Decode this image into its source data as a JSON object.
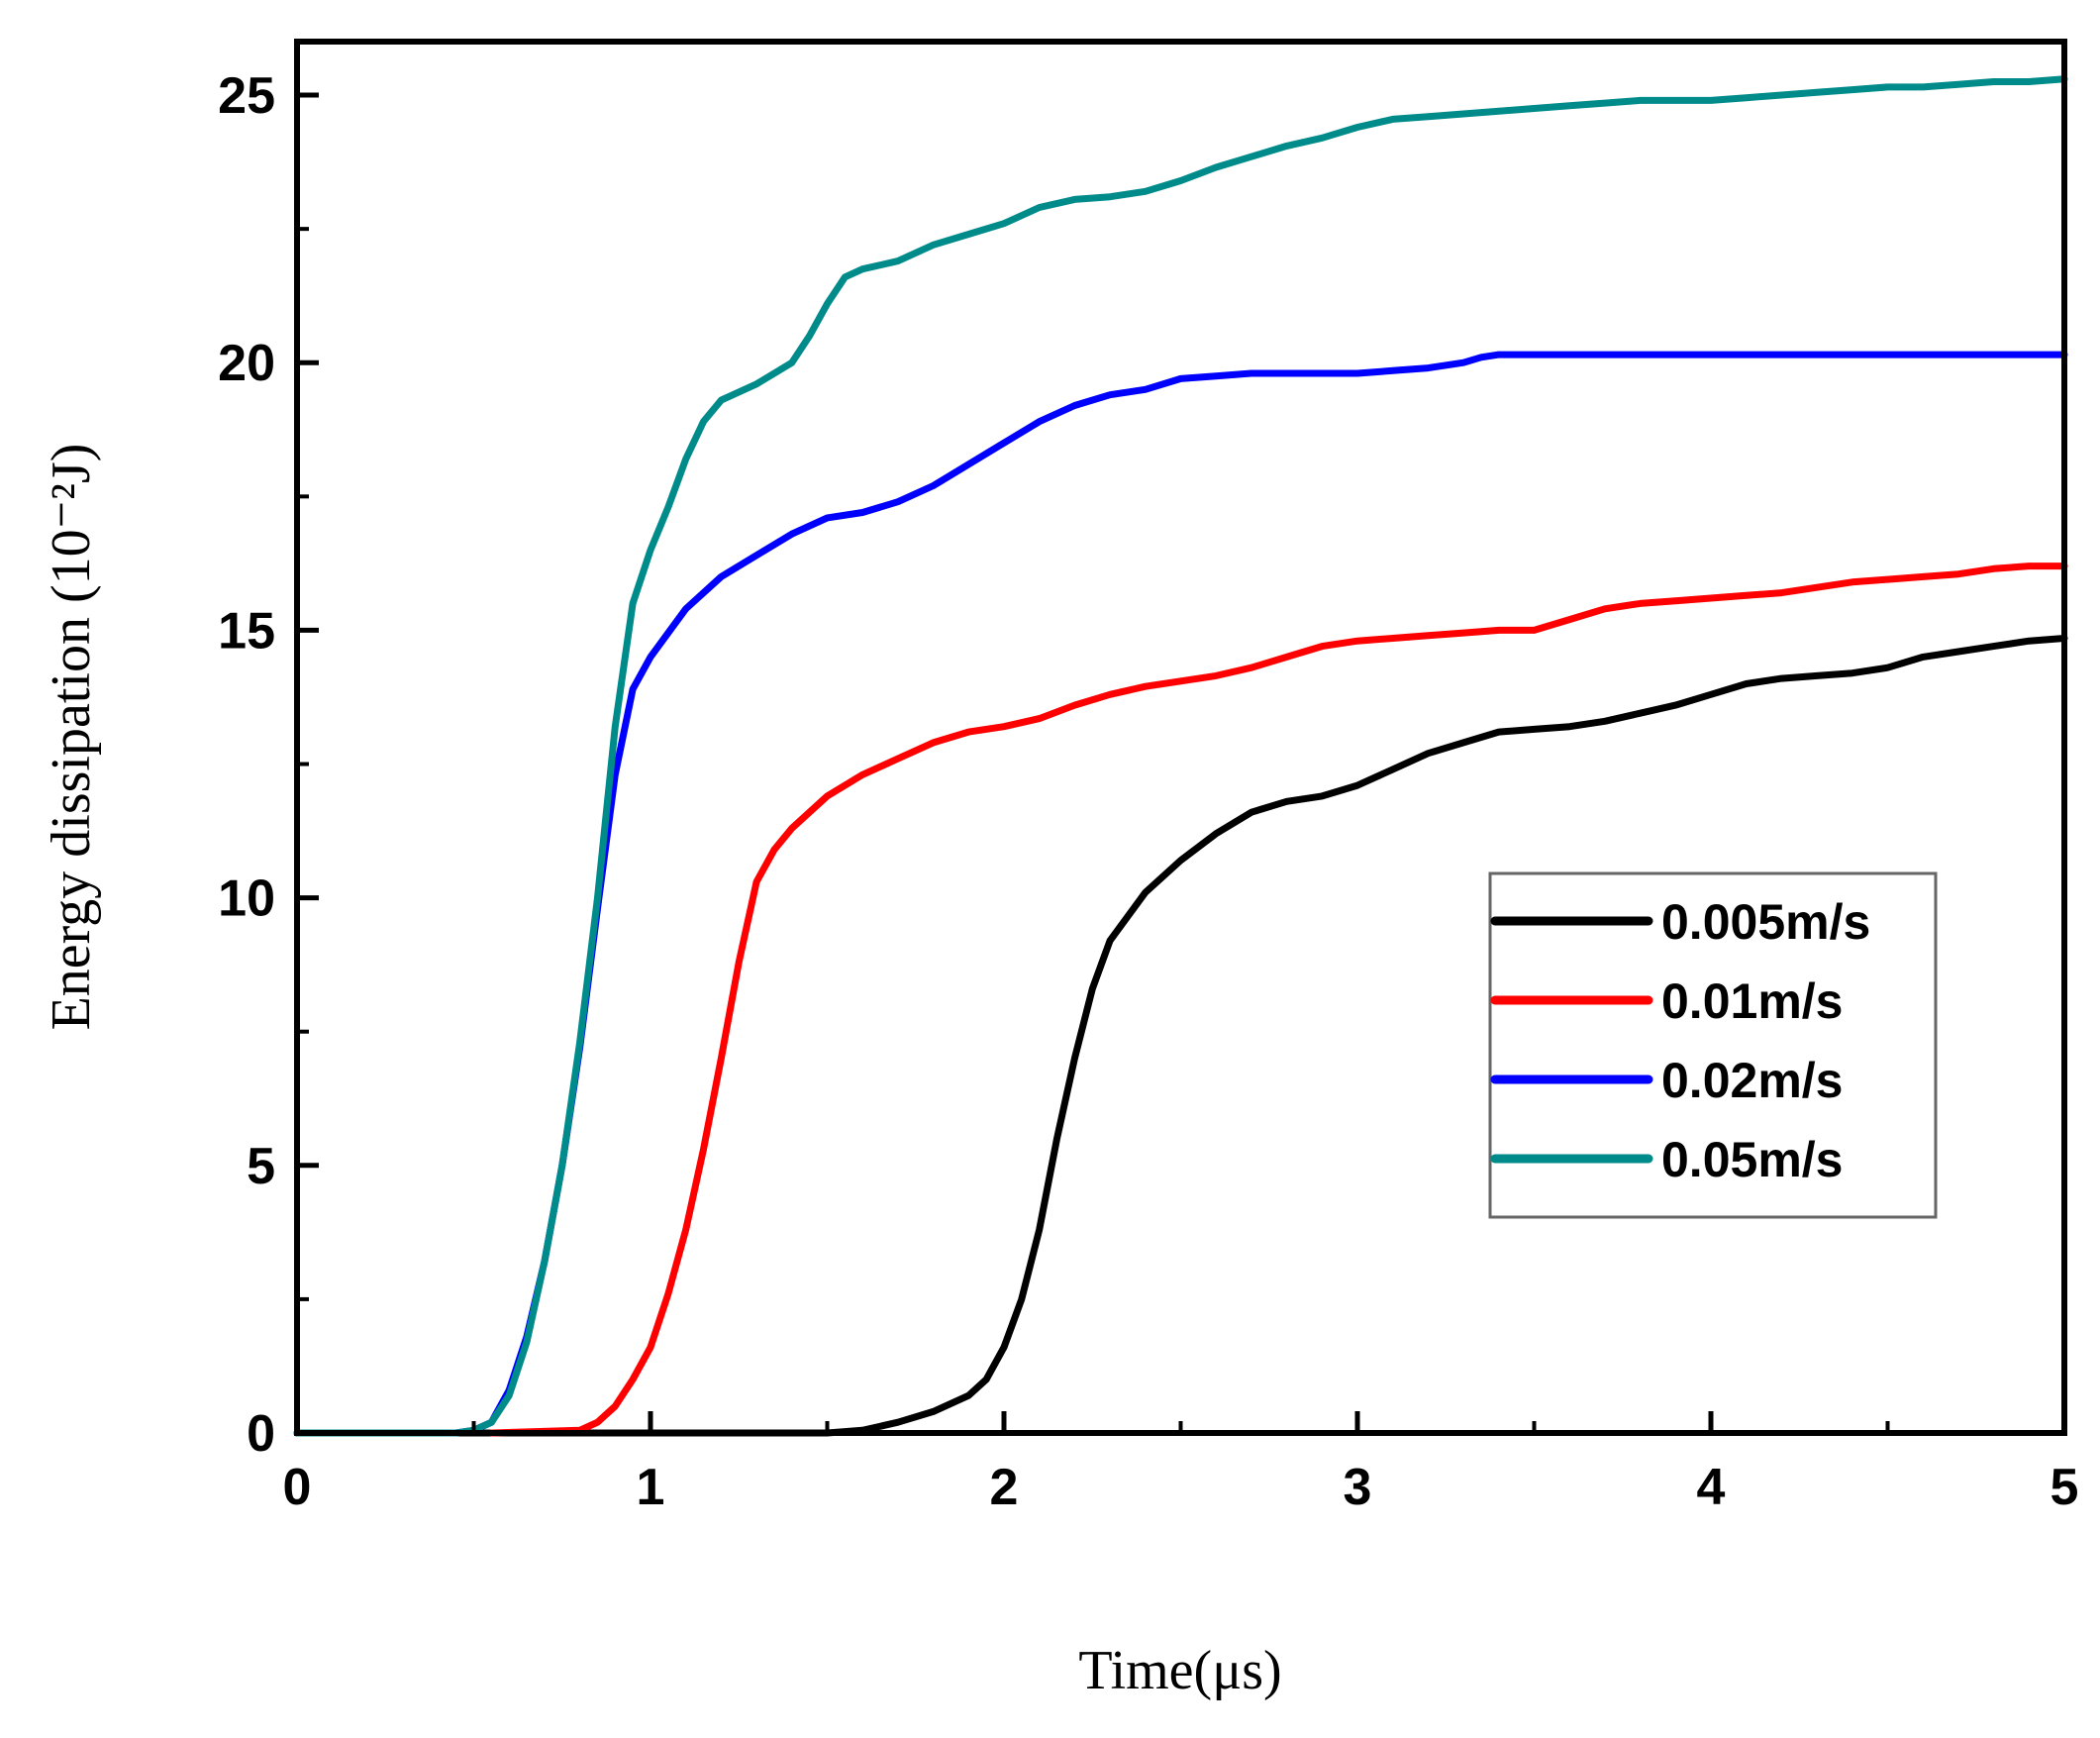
{
  "chart_data": {
    "type": "line",
    "title": "",
    "xlabel": "Time(μs)",
    "ylabel": "Energy dissipation (10⁻²J)",
    "xlim": [
      0,
      5
    ],
    "ylim": [
      0,
      26
    ],
    "x_ticks": [
      "0",
      "1",
      "2",
      "3",
      "4",
      "5"
    ],
    "y_ticks": [
      "0",
      "5",
      "10",
      "15",
      "20",
      "25"
    ],
    "grid": false,
    "legend_position": "center-right",
    "series": [
      {
        "name": "0.005m/s",
        "color": "#000000",
        "points": [
          [
            0,
            0
          ],
          [
            1.5,
            0
          ],
          [
            1.6,
            0.05
          ],
          [
            1.7,
            0.2
          ],
          [
            1.8,
            0.4
          ],
          [
            1.9,
            0.7
          ],
          [
            1.95,
            1
          ],
          [
            2.0,
            1.6
          ],
          [
            2.05,
            2.5
          ],
          [
            2.1,
            3.8
          ],
          [
            2.15,
            5.5
          ],
          [
            2.2,
            7.0
          ],
          [
            2.25,
            8.3
          ],
          [
            2.3,
            9.2
          ],
          [
            2.4,
            10.1
          ],
          [
            2.5,
            10.7
          ],
          [
            2.6,
            11.2
          ],
          [
            2.7,
            11.6
          ],
          [
            2.8,
            11.8
          ],
          [
            2.9,
            11.9
          ],
          [
            3.0,
            12.1
          ],
          [
            3.1,
            12.4
          ],
          [
            3.2,
            12.7
          ],
          [
            3.3,
            12.9
          ],
          [
            3.4,
            13.1
          ],
          [
            3.5,
            13.15
          ],
          [
            3.6,
            13.2
          ],
          [
            3.7,
            13.3
          ],
          [
            3.8,
            13.45
          ],
          [
            3.9,
            13.6
          ],
          [
            4.0,
            13.8
          ],
          [
            4.1,
            14.0
          ],
          [
            4.2,
            14.1
          ],
          [
            4.3,
            14.15
          ],
          [
            4.4,
            14.2
          ],
          [
            4.5,
            14.3
          ],
          [
            4.6,
            14.5
          ],
          [
            4.7,
            14.6
          ],
          [
            4.8,
            14.7
          ],
          [
            4.9,
            14.8
          ],
          [
            5.0,
            14.85
          ]
        ]
      },
      {
        "name": "0.01m/s",
        "color": "#ff0000",
        "points": [
          [
            0.55,
            0
          ],
          [
            0.8,
            0.05
          ],
          [
            0.85,
            0.2
          ],
          [
            0.9,
            0.5
          ],
          [
            0.95,
            1.0
          ],
          [
            1.0,
            1.6
          ],
          [
            1.05,
            2.6
          ],
          [
            1.1,
            3.8
          ],
          [
            1.15,
            5.3
          ],
          [
            1.2,
            7.0
          ],
          [
            1.25,
            8.8
          ],
          [
            1.3,
            10.3
          ],
          [
            1.35,
            10.9
          ],
          [
            1.4,
            11.3
          ],
          [
            1.5,
            11.9
          ],
          [
            1.6,
            12.3
          ],
          [
            1.7,
            12.6
          ],
          [
            1.8,
            12.9
          ],
          [
            1.9,
            13.1
          ],
          [
            2.0,
            13.2
          ],
          [
            2.1,
            13.35
          ],
          [
            2.2,
            13.6
          ],
          [
            2.3,
            13.8
          ],
          [
            2.4,
            13.95
          ],
          [
            2.5,
            14.05
          ],
          [
            2.6,
            14.15
          ],
          [
            2.7,
            14.3
          ],
          [
            2.8,
            14.5
          ],
          [
            2.9,
            14.7
          ],
          [
            3.0,
            14.8
          ],
          [
            3.1,
            14.85
          ],
          [
            3.2,
            14.9
          ],
          [
            3.3,
            14.95
          ],
          [
            3.4,
            15.0
          ],
          [
            3.5,
            15.0
          ],
          [
            3.6,
            15.2
          ],
          [
            3.7,
            15.4
          ],
          [
            3.8,
            15.5
          ],
          [
            3.9,
            15.55
          ],
          [
            4.0,
            15.6
          ],
          [
            4.1,
            15.65
          ],
          [
            4.2,
            15.7
          ],
          [
            4.3,
            15.8
          ],
          [
            4.4,
            15.9
          ],
          [
            4.5,
            15.95
          ],
          [
            4.6,
            16.0
          ],
          [
            4.7,
            16.05
          ],
          [
            4.8,
            16.15
          ],
          [
            4.9,
            16.2
          ],
          [
            5.0,
            16.2
          ]
        ]
      },
      {
        "name": "0.02m/s",
        "color": "#0000ff",
        "points": [
          [
            0,
            0
          ],
          [
            0.45,
            0
          ],
          [
            0.5,
            0.05
          ],
          [
            0.55,
            0.2
          ],
          [
            0.6,
            0.8
          ],
          [
            0.65,
            1.8
          ],
          [
            0.7,
            3.2
          ],
          [
            0.75,
            5.0
          ],
          [
            0.8,
            7.2
          ],
          [
            0.85,
            9.8
          ],
          [
            0.9,
            12.3
          ],
          [
            0.95,
            13.9
          ],
          [
            1.0,
            14.5
          ],
          [
            1.1,
            15.4
          ],
          [
            1.2,
            16.0
          ],
          [
            1.3,
            16.4
          ],
          [
            1.4,
            16.8
          ],
          [
            1.5,
            17.1
          ],
          [
            1.6,
            17.2
          ],
          [
            1.7,
            17.4
          ],
          [
            1.8,
            17.7
          ],
          [
            1.9,
            18.1
          ],
          [
            2.0,
            18.5
          ],
          [
            2.1,
            18.9
          ],
          [
            2.2,
            19.2
          ],
          [
            2.3,
            19.4
          ],
          [
            2.4,
            19.5
          ],
          [
            2.5,
            19.7
          ],
          [
            2.6,
            19.75
          ],
          [
            2.7,
            19.8
          ],
          [
            2.8,
            19.8
          ],
          [
            3.0,
            19.8
          ],
          [
            3.1,
            19.85
          ],
          [
            3.2,
            19.9
          ],
          [
            3.3,
            20.0
          ],
          [
            3.35,
            20.1
          ],
          [
            3.4,
            20.15
          ],
          [
            5.0,
            20.15
          ]
        ]
      },
      {
        "name": "0.05m/s",
        "color": "#008b8b",
        "points": [
          [
            0,
            0
          ],
          [
            0.45,
            0
          ],
          [
            0.5,
            0.05
          ],
          [
            0.55,
            0.2
          ],
          [
            0.6,
            0.7
          ],
          [
            0.65,
            1.7
          ],
          [
            0.7,
            3.2
          ],
          [
            0.75,
            5.0
          ],
          [
            0.8,
            7.3
          ],
          [
            0.85,
            10.0
          ],
          [
            0.9,
            13.2
          ],
          [
            0.95,
            15.5
          ],
          [
            1.0,
            16.5
          ],
          [
            1.05,
            17.3
          ],
          [
            1.1,
            18.2
          ],
          [
            1.15,
            18.9
          ],
          [
            1.2,
            19.3
          ],
          [
            1.3,
            19.6
          ],
          [
            1.4,
            20.0
          ],
          [
            1.45,
            20.5
          ],
          [
            1.5,
            21.1
          ],
          [
            1.55,
            21.6
          ],
          [
            1.6,
            21.75
          ],
          [
            1.7,
            21.9
          ],
          [
            1.8,
            22.2
          ],
          [
            1.9,
            22.4
          ],
          [
            2.0,
            22.6
          ],
          [
            2.1,
            22.9
          ],
          [
            2.2,
            23.05
          ],
          [
            2.3,
            23.1
          ],
          [
            2.4,
            23.2
          ],
          [
            2.5,
            23.4
          ],
          [
            2.6,
            23.65
          ],
          [
            2.7,
            23.85
          ],
          [
            2.8,
            24.05
          ],
          [
            2.9,
            24.2
          ],
          [
            3.0,
            24.4
          ],
          [
            3.1,
            24.55
          ],
          [
            3.2,
            24.6
          ],
          [
            3.3,
            24.65
          ],
          [
            3.4,
            24.7
          ],
          [
            3.5,
            24.75
          ],
          [
            3.6,
            24.8
          ],
          [
            3.7,
            24.85
          ],
          [
            3.8,
            24.9
          ],
          [
            3.9,
            24.9
          ],
          [
            4.0,
            24.9
          ],
          [
            4.1,
            24.95
          ],
          [
            4.2,
            25.0
          ],
          [
            4.3,
            25.05
          ],
          [
            4.4,
            25.1
          ],
          [
            4.5,
            25.15
          ],
          [
            4.6,
            25.15
          ],
          [
            4.7,
            25.2
          ],
          [
            4.8,
            25.25
          ],
          [
            4.9,
            25.25
          ],
          [
            5.0,
            25.3
          ]
        ]
      }
    ]
  }
}
